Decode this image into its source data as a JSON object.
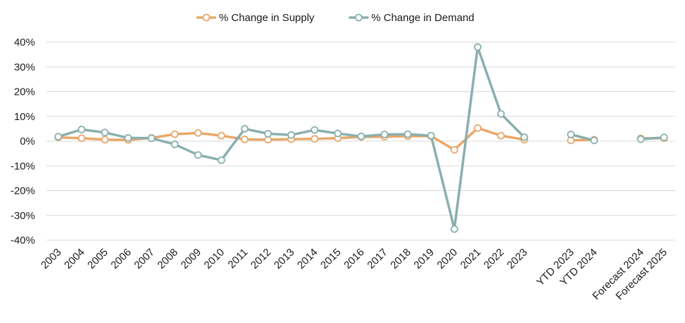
{
  "chart_data": {
    "type": "line",
    "categories": [
      "2003",
      "2004",
      "2005",
      "2006",
      "2007",
      "2008",
      "2009",
      "2010",
      "2011",
      "2012",
      "2013",
      "2014",
      "2015",
      "2016",
      "2017",
      "2018",
      "2019",
      "2020",
      "2021",
      "2022",
      "2023",
      "",
      "YTD 2023",
      "YTD 2024",
      "",
      "Forecast 2024",
      "Forecast 2025"
    ],
    "series": [
      {
        "name": "% Change in Supply",
        "color": "#E8A86A",
        "values": [
          1.5,
          1.2,
          0.6,
          0.5,
          1.3,
          2.8,
          3.3,
          2.2,
          0.7,
          0.6,
          0.8,
          0.9,
          1.2,
          1.7,
          1.8,
          2.0,
          2.0,
          -3.5,
          5.3,
          2.2,
          0.6,
          null,
          0.3,
          0.6,
          null,
          1.1,
          1.2
        ]
      },
      {
        "name": "% Change in Demand",
        "color": "#8AAFAF",
        "values": [
          1.8,
          4.7,
          3.5,
          1.3,
          1.2,
          -1.3,
          -5.6,
          -7.7,
          5.0,
          3.0,
          2.5,
          4.5,
          3.1,
          1.9,
          2.7,
          2.8,
          2.2,
          -35.5,
          38.0,
          11.0,
          1.6,
          null,
          2.7,
          0.3,
          null,
          0.8,
          1.5
        ]
      }
    ],
    "ylim": [
      -40,
      40
    ],
    "yticks": [
      -40,
      -30,
      -20,
      -10,
      0,
      10,
      20,
      30,
      40
    ],
    "ytick_labels": [
      "-40%",
      "-30%",
      "-20%",
      "-10%",
      "0%",
      "10%",
      "20%",
      "30%",
      "40%"
    ],
    "title": "",
    "xlabel": "",
    "ylabel": "",
    "grid": true,
    "legend_position": "top"
  }
}
